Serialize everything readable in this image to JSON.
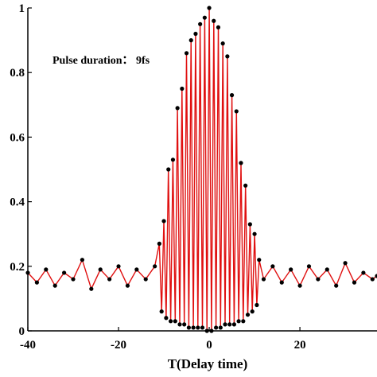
{
  "chart_data": {
    "type": "line",
    "title": "",
    "xlabel": "T(Delay time)",
    "ylabel": "",
    "xlim": [
      -40,
      37
    ],
    "ylim": [
      0,
      1
    ],
    "x_ticks": [
      -40,
      -20,
      0,
      20
    ],
    "x_tick_labels": [
      "-40",
      "-20",
      "0",
      "20"
    ],
    "y_ticks": [
      0,
      0.2,
      0.4,
      0.6,
      0.8,
      1
    ],
    "y_tick_labels": [
      "0",
      "0.2",
      "0.4",
      "0.6",
      "0.8",
      "1"
    ],
    "grid": false,
    "annotation": "Pulse duration： 9fs",
    "series": [
      {
        "style": "line",
        "color": "#e01010",
        "x": [
          -40,
          -38,
          -36,
          -34,
          -32,
          -30,
          -28,
          -26,
          -24,
          -22,
          -20,
          -18,
          -16,
          -14,
          -12,
          -11,
          -10.5,
          -10,
          -9.5,
          -9,
          -8.5,
          -8,
          -7.5,
          -7,
          -6.5,
          -6,
          -5.5,
          -5,
          -4.5,
          -4,
          -3.5,
          -3,
          -2.5,
          -2,
          -1.5,
          -1,
          -0.5,
          0,
          0.5,
          1,
          1.5,
          2,
          2.5,
          3,
          3.5,
          4,
          4.5,
          5,
          5.5,
          6,
          6.5,
          7,
          7.5,
          8,
          8.5,
          9,
          9.5,
          10,
          10.5,
          11,
          12,
          14,
          16,
          18,
          20,
          22,
          24,
          26,
          28,
          30,
          32,
          34,
          36,
          37
        ],
        "y": [
          0.18,
          0.15,
          0.19,
          0.14,
          0.18,
          0.16,
          0.22,
          0.13,
          0.19,
          0.16,
          0.2,
          0.14,
          0.19,
          0.16,
          0.2,
          0.27,
          0.06,
          0.34,
          0.04,
          0.5,
          0.03,
          0.53,
          0.03,
          0.69,
          0.02,
          0.75,
          0.02,
          0.86,
          0.01,
          0.9,
          0.01,
          0.92,
          0.01,
          0.95,
          0.01,
          0.97,
          0.0,
          1.0,
          0.0,
          0.96,
          0.01,
          0.94,
          0.01,
          0.89,
          0.02,
          0.85,
          0.02,
          0.73,
          0.02,
          0.68,
          0.03,
          0.52,
          0.03,
          0.45,
          0.05,
          0.33,
          0.06,
          0.3,
          0.08,
          0.22,
          0.16,
          0.2,
          0.15,
          0.19,
          0.14,
          0.2,
          0.16,
          0.19,
          0.14,
          0.21,
          0.15,
          0.18,
          0.16,
          0.17
        ]
      },
      {
        "style": "scatter",
        "color": "#000000",
        "x": [
          -40,
          -38,
          -36,
          -34,
          -32,
          -30,
          -28,
          -26,
          -24,
          -22,
          -20,
          -18,
          -16,
          -14,
          -12,
          -11,
          -10.5,
          -10,
          -9.5,
          -9,
          -8.5,
          -8,
          -7.5,
          -7,
          -6.5,
          -6,
          -5.5,
          -5,
          -4.5,
          -4,
          -3.5,
          -3,
          -2.5,
          -2,
          -1.5,
          -1,
          -0.5,
          0,
          0.5,
          1,
          1.5,
          2,
          2.5,
          3,
          3.5,
          4,
          4.5,
          5,
          5.5,
          6,
          6.5,
          7,
          7.5,
          8,
          8.5,
          9,
          9.5,
          10,
          10.5,
          11,
          12,
          14,
          16,
          18,
          20,
          22,
          24,
          26,
          28,
          30,
          32,
          34,
          36,
          37
        ],
        "y": [
          0.18,
          0.15,
          0.19,
          0.14,
          0.18,
          0.16,
          0.22,
          0.13,
          0.19,
          0.16,
          0.2,
          0.14,
          0.19,
          0.16,
          0.2,
          0.27,
          0.06,
          0.34,
          0.04,
          0.5,
          0.03,
          0.53,
          0.03,
          0.69,
          0.02,
          0.75,
          0.02,
          0.86,
          0.01,
          0.9,
          0.01,
          0.92,
          0.01,
          0.95,
          0.01,
          0.97,
          0.0,
          1.0,
          0.0,
          0.96,
          0.01,
          0.94,
          0.01,
          0.89,
          0.02,
          0.85,
          0.02,
          0.73,
          0.02,
          0.68,
          0.03,
          0.52,
          0.03,
          0.45,
          0.05,
          0.33,
          0.06,
          0.3,
          0.08,
          0.22,
          0.16,
          0.2,
          0.15,
          0.19,
          0.14,
          0.2,
          0.16,
          0.19,
          0.14,
          0.21,
          0.15,
          0.18,
          0.16,
          0.17
        ]
      }
    ]
  }
}
